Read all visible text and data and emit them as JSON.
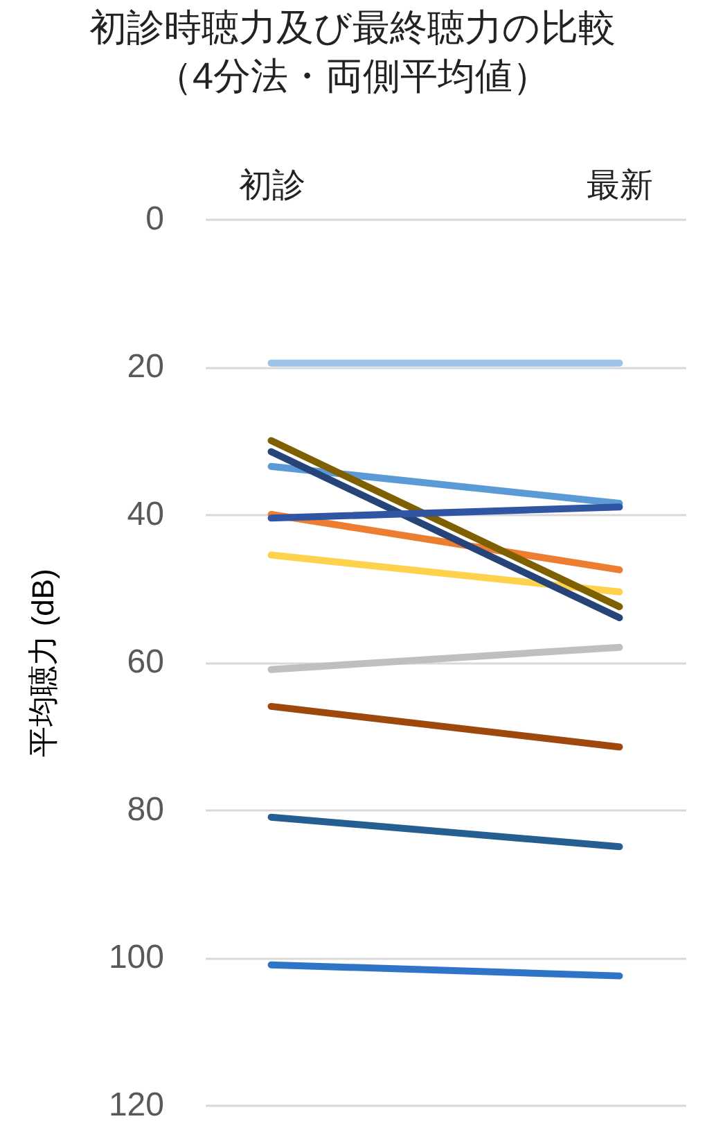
{
  "chart_data": {
    "type": "line",
    "title": "初診時聴力及び最終聴力の比較",
    "subtitle": "（4分法・両側平均値）",
    "ylabel": "平均聴力 (dB)",
    "categories": [
      "初診",
      "最新"
    ],
    "series": [
      {
        "color": "#9dc3e6",
        "values": [
          19.5,
          19.5
        ]
      },
      {
        "color": "#5b9bd5",
        "values": [
          33.5,
          38.5
        ]
      },
      {
        "color": "#ed7d31",
        "values": [
          40,
          47.5
        ]
      },
      {
        "color": "#ffd24d",
        "values": [
          45.5,
          50.5
        ]
      },
      {
        "color": "#bfbfbf",
        "values": [
          61,
          58
        ]
      },
      {
        "color": "#9e480e",
        "values": [
          66,
          71.5
        ]
      },
      {
        "color": "#255e91",
        "values": [
          81,
          85
        ]
      },
      {
        "color": "#2e75c8",
        "values": [
          101,
          102.5
        ]
      },
      {
        "color": "#264478",
        "values": [
          31.5,
          54
        ]
      },
      {
        "color": "#7f6000",
        "values": [
          30,
          52.5
        ]
      },
      {
        "color": "#2f55a3",
        "values": [
          40.5,
          39
        ]
      }
    ],
    "ylim": [
      120,
      0
    ],
    "yticks": [
      0,
      20,
      40,
      60,
      80,
      100,
      120
    ],
    "grid": "y",
    "marker": "none",
    "line_style": "solid"
  }
}
